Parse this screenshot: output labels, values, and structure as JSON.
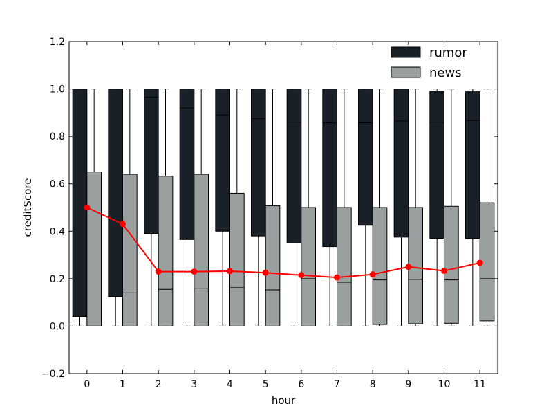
{
  "chart_data": {
    "type": "box",
    "title": "",
    "xlabel": "hour",
    "ylabel": "creditScore",
    "ylim": [
      -0.2,
      1.2
    ],
    "yticks": [
      "−0.2",
      "0.0",
      "0.2",
      "0.4",
      "0.6",
      "0.8",
      "1.0",
      "1.2"
    ],
    "ytick_values": [
      -0.2,
      0.0,
      0.2,
      0.4,
      0.6,
      0.8,
      1.0,
      1.2
    ],
    "categories": [
      "0",
      "1",
      "2",
      "3",
      "4",
      "5",
      "6",
      "7",
      "8",
      "9",
      "10",
      "11"
    ],
    "legend_position": "top-right",
    "colors": {
      "rumor": "#1a2028",
      "news": "#9aa0a0",
      "line": "#ff0000"
    },
    "series": [
      {
        "name": "rumor",
        "boxes": [
          {
            "whisker_low": 0.0,
            "q1": 0.04,
            "median": 1.0,
            "q3": 1.0,
            "whisker_high": 1.0
          },
          {
            "whisker_low": 0.0,
            "q1": 0.125,
            "median": 1.0,
            "q3": 1.0,
            "whisker_high": 1.0
          },
          {
            "whisker_low": 0.0,
            "q1": 0.39,
            "median": 0.965,
            "q3": 1.0,
            "whisker_high": 1.0
          },
          {
            "whisker_low": 0.0,
            "q1": 0.365,
            "median": 0.92,
            "q3": 1.0,
            "whisker_high": 1.0
          },
          {
            "whisker_low": 0.0,
            "q1": 0.4,
            "median": 0.89,
            "q3": 1.0,
            "whisker_high": 1.0
          },
          {
            "whisker_low": 0.0,
            "q1": 0.38,
            "median": 0.875,
            "q3": 1.0,
            "whisker_high": 1.0
          },
          {
            "whisker_low": 0.0,
            "q1": 0.35,
            "median": 0.86,
            "q3": 1.0,
            "whisker_high": 1.0
          },
          {
            "whisker_low": 0.0,
            "q1": 0.335,
            "median": 0.857,
            "q3": 1.0,
            "whisker_high": 1.0
          },
          {
            "whisker_low": 0.0,
            "q1": 0.425,
            "median": 0.857,
            "q3": 1.0,
            "whisker_high": 1.0
          },
          {
            "whisker_low": 0.0,
            "q1": 0.375,
            "median": 0.865,
            "q3": 1.0,
            "whisker_high": 1.0
          },
          {
            "whisker_low": 0.0,
            "q1": 0.37,
            "median": 0.86,
            "q3": 0.99,
            "whisker_high": 1.0
          },
          {
            "whisker_low": 0.0,
            "q1": 0.37,
            "median": 0.867,
            "q3": 0.988,
            "whisker_high": 1.0
          }
        ]
      },
      {
        "name": "news",
        "boxes": [
          {
            "whisker_low": 0.0,
            "q1": 0.0,
            "median": 0.0,
            "q3": 0.65,
            "whisker_high": 1.0
          },
          {
            "whisker_low": 0.0,
            "q1": 0.0,
            "median": 0.14,
            "q3": 0.64,
            "whisker_high": 1.0
          },
          {
            "whisker_low": 0.0,
            "q1": 0.0,
            "median": 0.155,
            "q3": 0.632,
            "whisker_high": 1.0
          },
          {
            "whisker_low": 0.0,
            "q1": 0.0,
            "median": 0.16,
            "q3": 0.64,
            "whisker_high": 1.0
          },
          {
            "whisker_low": 0.0,
            "q1": 0.0,
            "median": 0.162,
            "q3": 0.56,
            "whisker_high": 1.0
          },
          {
            "whisker_low": 0.0,
            "q1": 0.0,
            "median": 0.153,
            "q3": 0.507,
            "whisker_high": 1.0
          },
          {
            "whisker_low": 0.0,
            "q1": 0.0,
            "median": 0.2,
            "q3": 0.5,
            "whisker_high": 1.0
          },
          {
            "whisker_low": 0.0,
            "q1": 0.0,
            "median": 0.185,
            "q3": 0.5,
            "whisker_high": 1.0
          },
          {
            "whisker_low": 0.0,
            "q1": 0.007,
            "median": 0.195,
            "q3": 0.5,
            "whisker_high": 1.0
          },
          {
            "whisker_low": 0.0,
            "q1": 0.01,
            "median": 0.197,
            "q3": 0.5,
            "whisker_high": 1.0
          },
          {
            "whisker_low": 0.0,
            "q1": 0.012,
            "median": 0.195,
            "q3": 0.505,
            "whisker_high": 1.0
          },
          {
            "whisker_low": 0.0,
            "q1": 0.022,
            "median": 0.2,
            "q3": 0.52,
            "whisker_high": 1.0
          }
        ]
      }
    ],
    "line": {
      "values": [
        0.5,
        0.43,
        0.23,
        0.23,
        0.232,
        0.225,
        0.215,
        0.205,
        0.218,
        0.25,
        0.233,
        0.267
      ]
    }
  }
}
